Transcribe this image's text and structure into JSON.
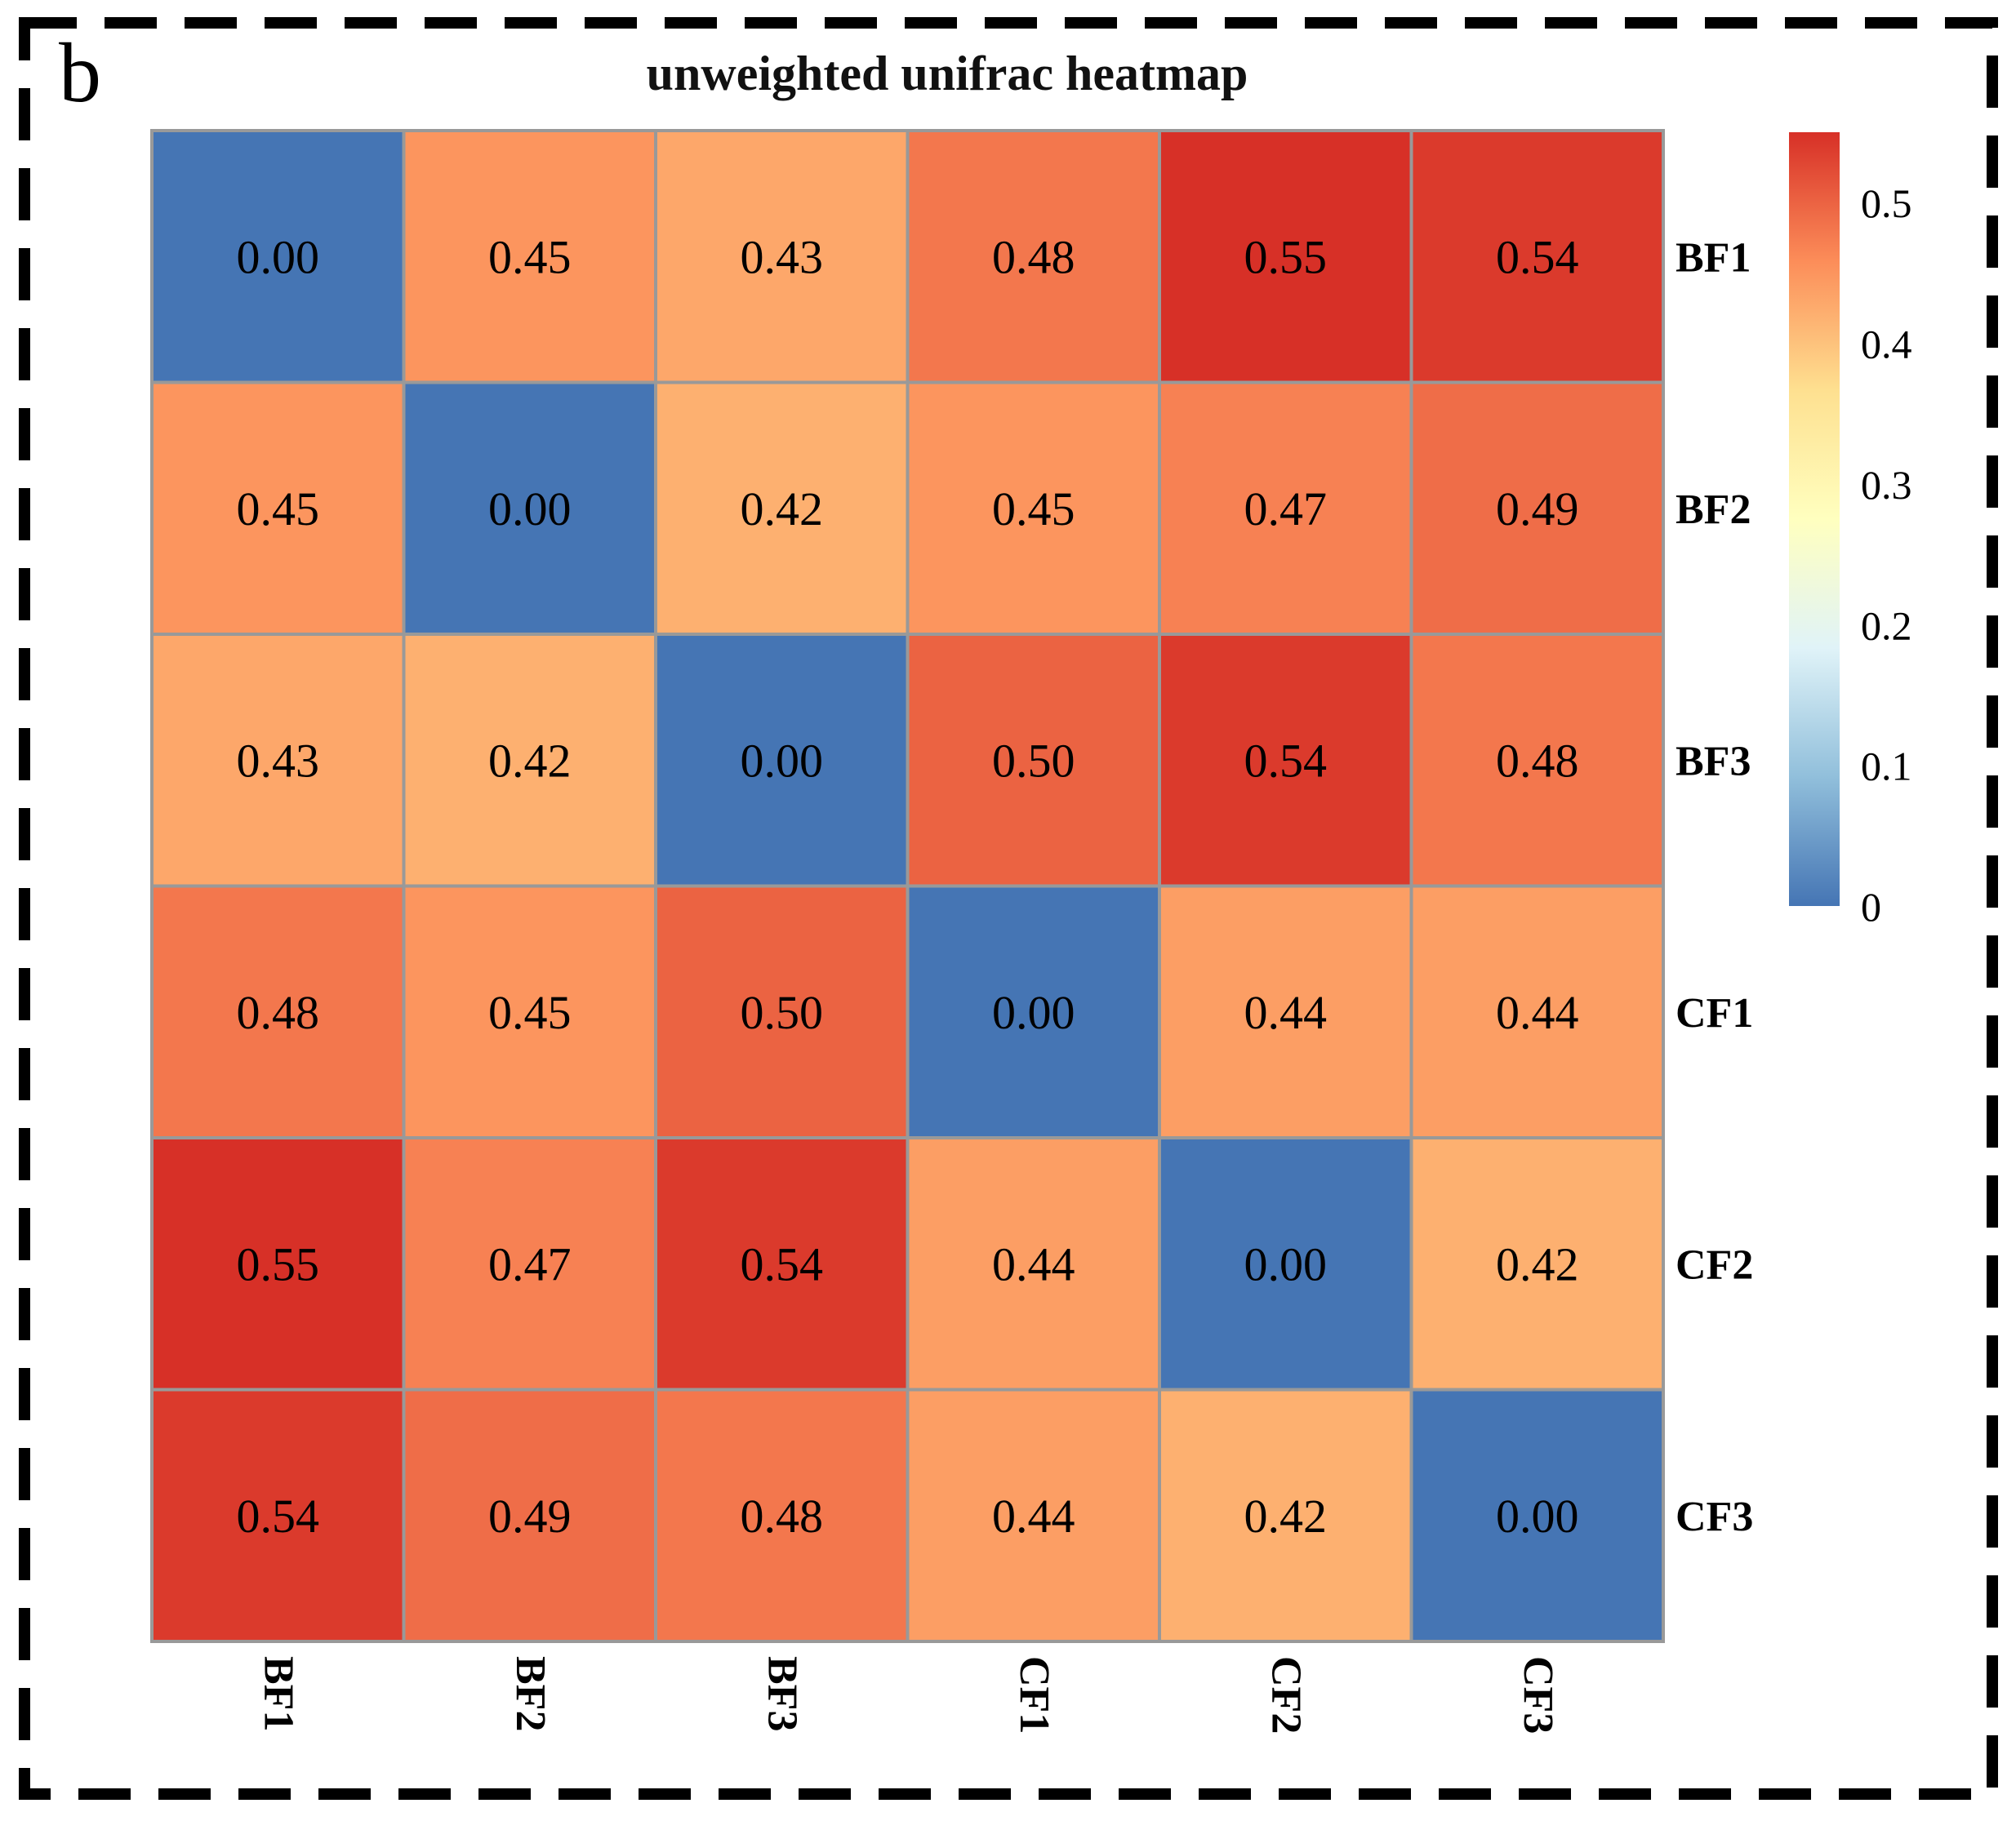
{
  "panel_label": "b",
  "chart_data": {
    "type": "heatmap",
    "title": "unweighted unifrac heatmap",
    "row_labels": [
      "BF1",
      "BF2",
      "BF3",
      "CF1",
      "CF2",
      "CF3"
    ],
    "col_labels": [
      "BF1",
      "BF2",
      "BF3",
      "CF1",
      "CF2",
      "CF3"
    ],
    "values": [
      [
        0.0,
        0.45,
        0.43,
        0.48,
        0.55,
        0.54
      ],
      [
        0.45,
        0.0,
        0.42,
        0.45,
        0.47,
        0.49
      ],
      [
        0.43,
        0.42,
        0.0,
        0.5,
        0.54,
        0.48
      ],
      [
        0.48,
        0.45,
        0.5,
        0.0,
        0.44,
        0.44
      ],
      [
        0.55,
        0.47,
        0.54,
        0.44,
        0.0,
        0.42
      ],
      [
        0.54,
        0.49,
        0.48,
        0.44,
        0.42,
        0.0
      ]
    ],
    "cell_labels": [
      [
        "0.00",
        "0.45",
        "0.43",
        "0.48",
        "0.55",
        "0.54"
      ],
      [
        "0.45",
        "0.00",
        "0.42",
        "0.45",
        "0.47",
        "0.49"
      ],
      [
        "0.43",
        "0.42",
        "0.00",
        "0.50",
        "0.54",
        "0.48"
      ],
      [
        "0.48",
        "0.45",
        "0.50",
        "0.00",
        "0.44",
        "0.44"
      ],
      [
        "0.55",
        "0.47",
        "0.54",
        "0.44",
        "0.00",
        "0.42"
      ],
      [
        "0.54",
        "0.49",
        "0.48",
        "0.44",
        "0.42",
        "0.00"
      ]
    ],
    "colorbar": {
      "range": [
        0,
        0.55
      ],
      "ticks": [
        0,
        0.1,
        0.2,
        0.3,
        0.4,
        0.5
      ],
      "tick_labels": [
        "0",
        "0.1",
        "0.2",
        "0.3",
        "0.4",
        "0.5"
      ],
      "colors": [
        "#4575b4",
        "#91bfdb",
        "#e0f3f8",
        "#ffffbf",
        "#fee090",
        "#fc8d59",
        "#d73027"
      ]
    },
    "grid_color": "#999999",
    "legend_position": "right"
  }
}
